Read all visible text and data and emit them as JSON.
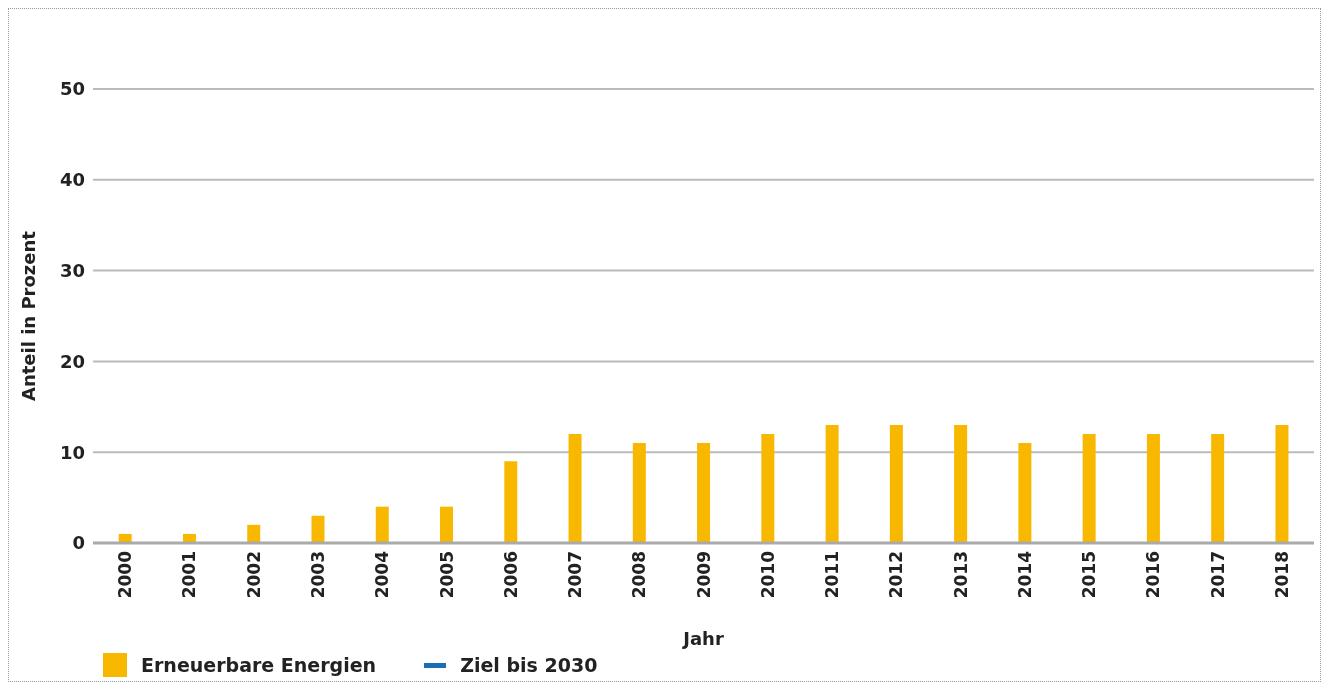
{
  "chart_data": {
    "type": "bar",
    "xlabel": "Jahr",
    "ylabel": "Anteil in Prozent",
    "categories": [
      "2000",
      "2001",
      "2002",
      "2003",
      "2004",
      "2005",
      "2006",
      "2007",
      "2008",
      "2009",
      "2010",
      "2011",
      "2012",
      "2013",
      "2014",
      "2015",
      "2016",
      "2017",
      "2018"
    ],
    "series": [
      {
        "name": "Erneuerbare Energien",
        "color": "#f9b800",
        "values": [
          1,
          1,
          2,
          3,
          4,
          4,
          9,
          12,
          11,
          11,
          12,
          13,
          13,
          13,
          11,
          12,
          12,
          12,
          13
        ]
      },
      {
        "name": "Ziel bis 2030",
        "type": "line",
        "color": "#1b6db5",
        "values": [
          null,
          null,
          null,
          null,
          null,
          null,
          null,
          null,
          null,
          null,
          null,
          null,
          null,
          null,
          null,
          null,
          null,
          null,
          null
        ]
      }
    ],
    "ylim": [
      0,
      50
    ],
    "yticks": [
      0,
      10,
      20,
      30,
      40,
      50
    ],
    "grid": "y",
    "legend": "bottom left"
  }
}
